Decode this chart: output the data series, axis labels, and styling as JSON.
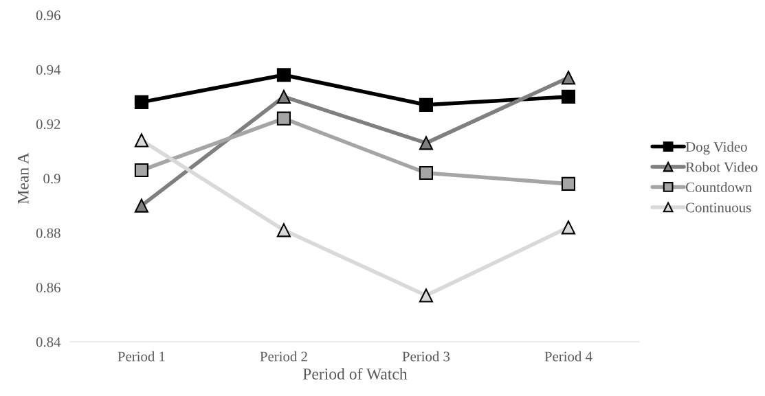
{
  "chart_data": {
    "type": "line",
    "xlabel": "Period of Watch",
    "ylabel": "Mean A",
    "categories": [
      "Period 1",
      "Period 2",
      "Period 3",
      "Period 4"
    ],
    "series": [
      {
        "name": "Dog Video",
        "color": "#000000",
        "marker": "square",
        "values": [
          0.928,
          0.938,
          0.927,
          0.93
        ]
      },
      {
        "name": "Robot Video",
        "color": "#7f7f7f",
        "marker": "triangle",
        "values": [
          0.89,
          0.93,
          0.913,
          0.937
        ]
      },
      {
        "name": "Countdown",
        "color": "#a5a5a5",
        "marker": "square",
        "values": [
          0.903,
          0.922,
          0.902,
          0.898
        ]
      },
      {
        "name": "Continuous",
        "color": "#d9d9d9",
        "marker": "triangle",
        "values": [
          0.914,
          0.881,
          0.857,
          0.882
        ]
      }
    ],
    "ylim": [
      0.84,
      0.96
    ],
    "yticks": [
      0.84,
      0.86,
      0.88,
      0.9,
      0.92,
      0.94,
      0.96
    ],
    "grid": false,
    "legend": "right",
    "line_style": "solid"
  }
}
